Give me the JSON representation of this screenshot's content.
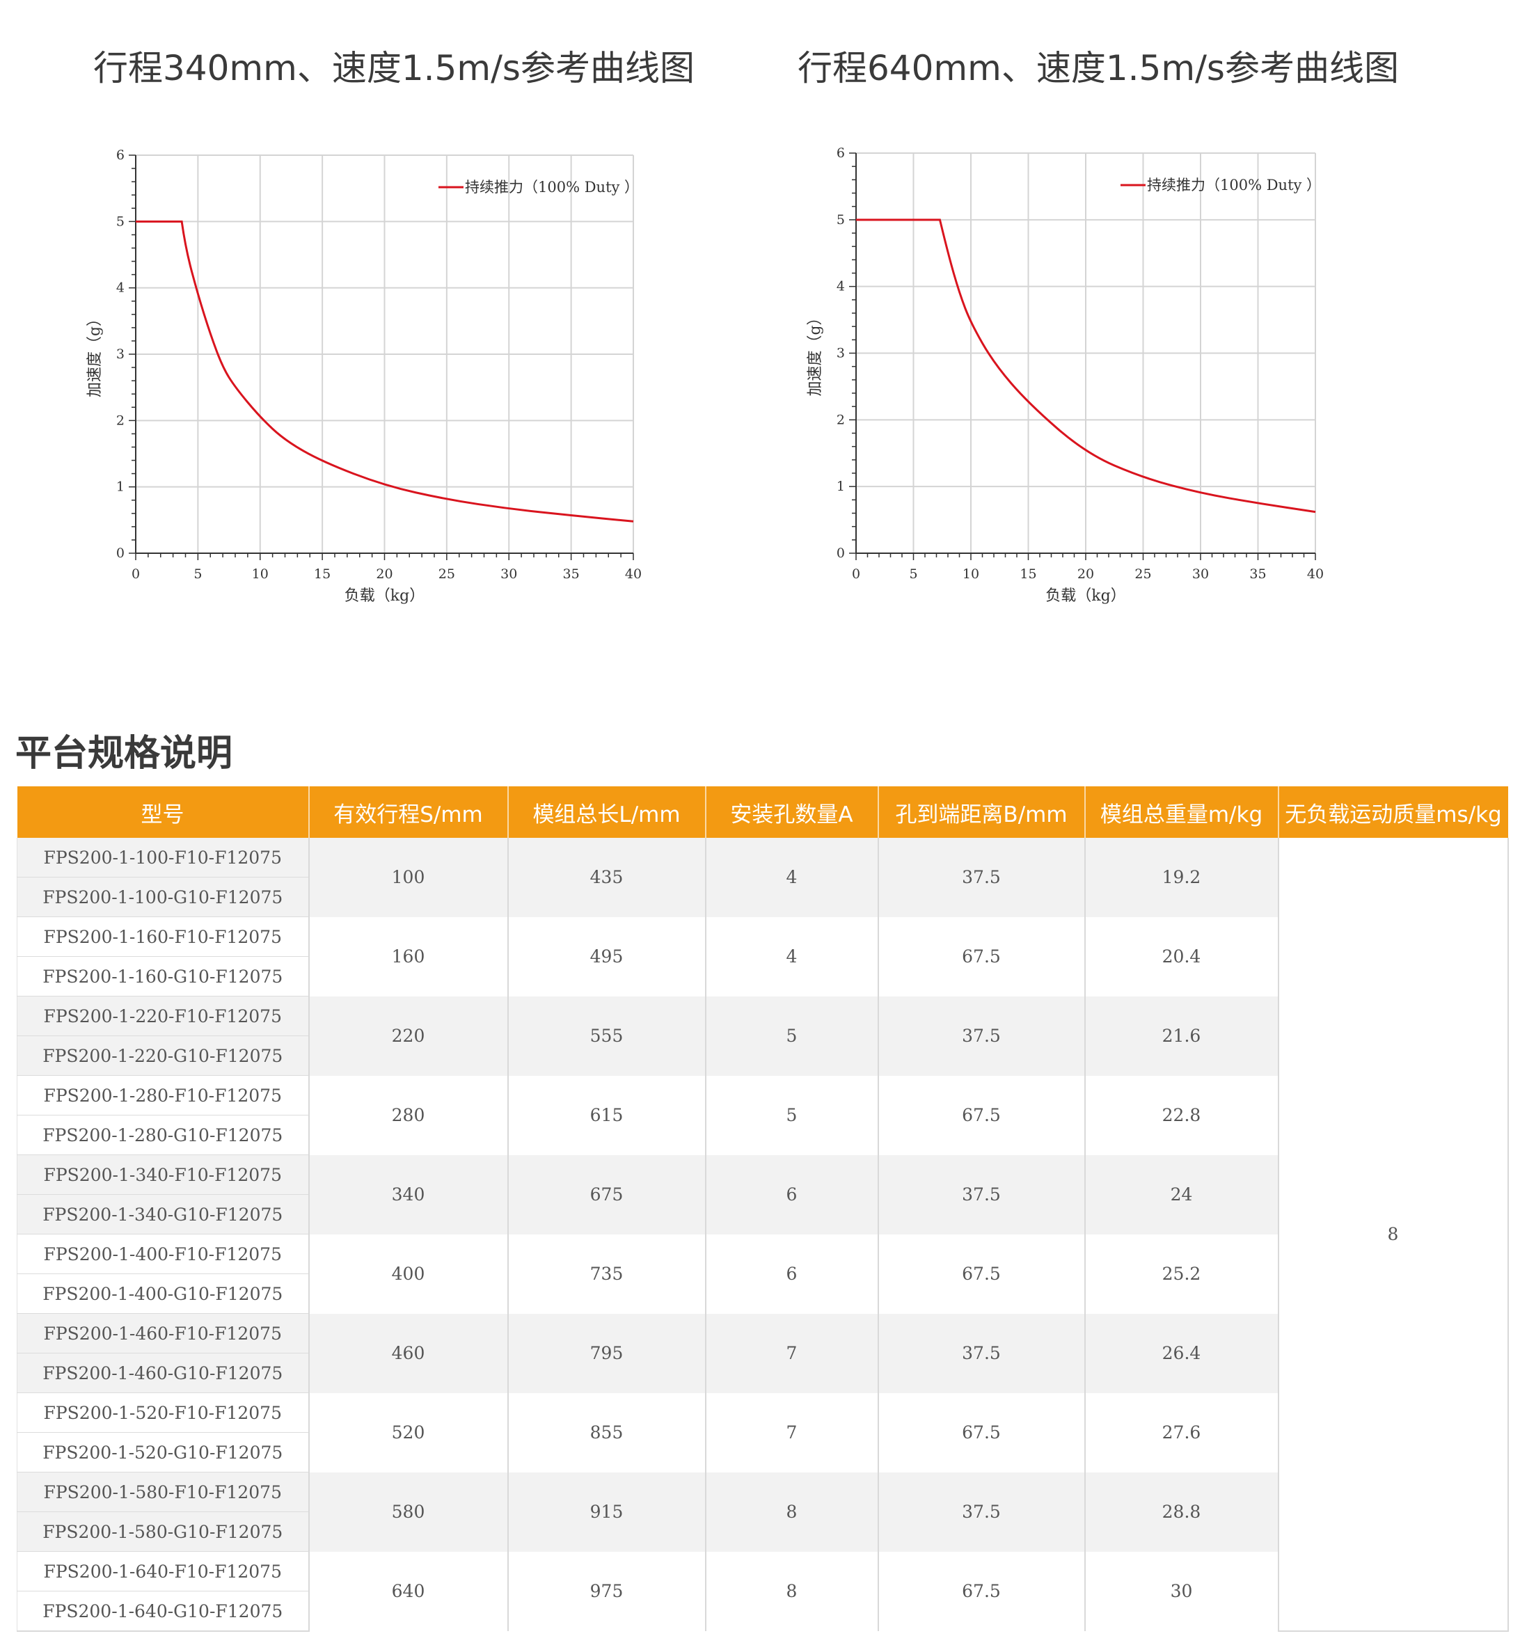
{
  "chart_data": [
    {
      "type": "line",
      "title": "行程340mm、速度1.5m/s参考曲线图",
      "xlabel": "负载（kg）",
      "ylabel": "加速度（g）",
      "xlim": [
        0,
        40
      ],
      "ylim": [
        0,
        6
      ],
      "xticks": [
        "0",
        "5",
        "10",
        "15",
        "20",
        "25",
        "30",
        "35",
        "40"
      ],
      "yticks": [
        "0",
        "1",
        "2",
        "3",
        "4",
        "5",
        "6"
      ],
      "grid": true,
      "legend": "top-right",
      "series": [
        {
          "name": "持续推力（100% Duty ）",
          "color": "#d9141e",
          "x": [
            0,
            3.7,
            4,
            5,
            6,
            7,
            8,
            10,
            12,
            15,
            20,
            25,
            30,
            35,
            40
          ],
          "y": [
            5,
            5,
            4.6,
            3.9,
            3.3,
            2.8,
            2.5,
            2.05,
            1.7,
            1.38,
            1.02,
            0.81,
            0.67,
            0.57,
            0.48
          ]
        }
      ]
    },
    {
      "type": "line",
      "title": "行程640mm、速度1.5m/s参考曲线图",
      "xlabel": "负载（kg）",
      "ylabel": "加速度（g）",
      "xlim": [
        0,
        40
      ],
      "ylim": [
        0,
        6
      ],
      "xticks": [
        "0",
        "5",
        "10",
        "15",
        "20",
        "25",
        "30",
        "35",
        "40"
      ],
      "yticks": [
        "0",
        "1",
        "2",
        "3",
        "4",
        "5",
        "6"
      ],
      "grid": true,
      "legend": "top-right",
      "series": [
        {
          "name": "持续推力（100% Duty ）",
          "color": "#d9141e",
          "x": [
            0,
            7.3,
            8,
            9,
            10,
            12,
            15,
            20,
            25,
            30,
            35,
            40
          ],
          "y": [
            5,
            5,
            4.5,
            3.9,
            3.45,
            2.85,
            2.25,
            1.5,
            1.13,
            0.9,
            0.75,
            0.62
          ]
        }
      ]
    }
  ],
  "spec": {
    "title": "平台规格说明",
    "headers": [
      "型号",
      "有效行程S/mm",
      "模组总长L/mm",
      "安装孔数量A",
      "孔到端距离B/mm",
      "模组总重量m/kg",
      "无负载运动质量ms/kg"
    ],
    "ms_value": "8",
    "groups": [
      {
        "models": [
          "FPS200-1-100-F10-F12075",
          "FPS200-1-100-G10-F12075"
        ],
        "stroke": "100",
        "length": "435",
        "holes": "4",
        "distance": "37.5",
        "weight": "19.2"
      },
      {
        "models": [
          "FPS200-1-160-F10-F12075",
          "FPS200-1-160-G10-F12075"
        ],
        "stroke": "160",
        "length": "495",
        "holes": "4",
        "distance": "67.5",
        "weight": "20.4"
      },
      {
        "models": [
          "FPS200-1-220-F10-F12075",
          "FPS200-1-220-G10-F12075"
        ],
        "stroke": "220",
        "length": "555",
        "holes": "5",
        "distance": "37.5",
        "weight": "21.6"
      },
      {
        "models": [
          "FPS200-1-280-F10-F12075",
          "FPS200-1-280-G10-F12075"
        ],
        "stroke": "280",
        "length": "615",
        "holes": "5",
        "distance": "67.5",
        "weight": "22.8"
      },
      {
        "models": [
          "FPS200-1-340-F10-F12075",
          "FPS200-1-340-G10-F12075"
        ],
        "stroke": "340",
        "length": "675",
        "holes": "6",
        "distance": "37.5",
        "weight": "24"
      },
      {
        "models": [
          "FPS200-1-400-F10-F12075",
          "FPS200-1-400-G10-F12075"
        ],
        "stroke": "400",
        "length": "735",
        "holes": "6",
        "distance": "67.5",
        "weight": "25.2"
      },
      {
        "models": [
          "FPS200-1-460-F10-F12075",
          "FPS200-1-460-G10-F12075"
        ],
        "stroke": "460",
        "length": "795",
        "holes": "7",
        "distance": "37.5",
        "weight": "26.4"
      },
      {
        "models": [
          "FPS200-1-520-F10-F12075",
          "FPS200-1-520-G10-F12075"
        ],
        "stroke": "520",
        "length": "855",
        "holes": "7",
        "distance": "67.5",
        "weight": "27.6"
      },
      {
        "models": [
          "FPS200-1-580-F10-F12075",
          "FPS200-1-580-G10-F12075"
        ],
        "stroke": "580",
        "length": "915",
        "holes": "8",
        "distance": "37.5",
        "weight": "28.8"
      },
      {
        "models": [
          "FPS200-1-640-F10-F12075",
          "FPS200-1-640-G10-F12075"
        ],
        "stroke": "640",
        "length": "975",
        "holes": "8",
        "distance": "67.5",
        "weight": "30"
      }
    ]
  }
}
